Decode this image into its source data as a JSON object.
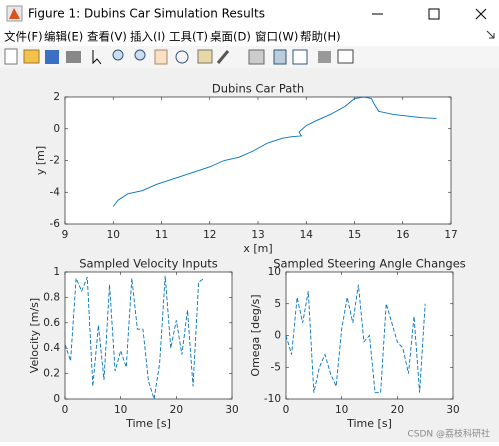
{
  "window": {
    "title": "Figure 1: Dubins Car Simulation Results",
    "menu": [
      "文件(F)",
      "编辑(E)",
      "查看(V)",
      "插入(I)",
      "工具(T)",
      "桌面(D)",
      "窗口(W)",
      "帮助(H)"
    ]
  },
  "watermark": "CSDN @荔枝科研社",
  "chart_data": [
    {
      "type": "line",
      "title": "Dubins Car Path",
      "x_label": "x [m]",
      "y_label": "y [m]",
      "color": "#0072bd",
      "line_style": "solid",
      "x": [
        10.0,
        10.1,
        10.3,
        10.6,
        10.9,
        11.2,
        11.5,
        11.8,
        12.0,
        12.3,
        12.6,
        12.9,
        13.2,
        13.5,
        13.7,
        13.9,
        13.85,
        14.0,
        14.2,
        14.5,
        14.8,
        15.0,
        15.2,
        15.35,
        15.4,
        15.5,
        15.8,
        16.1,
        16.4,
        16.7
      ],
      "values": [
        -4.9,
        -4.5,
        -4.1,
        -3.9,
        -3.5,
        -3.2,
        -2.9,
        -2.6,
        -2.4,
        -2.0,
        -1.8,
        -1.4,
        -0.9,
        -0.6,
        -0.5,
        -0.45,
        -0.2,
        0.2,
        0.5,
        0.9,
        1.4,
        1.9,
        2.0,
        1.9,
        1.6,
        1.1,
        0.9,
        0.8,
        0.7,
        0.65
      ],
      "xlim": [
        9,
        17
      ],
      "xticks": [
        9,
        10,
        11,
        12,
        13,
        14,
        15,
        16,
        17
      ],
      "ylim": [
        -6,
        2
      ],
      "yticks": [
        -6,
        -4,
        -2,
        0,
        2
      ]
    },
    {
      "type": "line",
      "title": "Sampled Velocity Inputs",
      "x_label": "Time [s]",
      "y_label": "Velocity [m/s]",
      "color": "#0072bd",
      "line_style": "dashed",
      "x": [
        0,
        1,
        2,
        3,
        4,
        5,
        6,
        7,
        8,
        9,
        10,
        11,
        12,
        13,
        14,
        15,
        16,
        17,
        18,
        19,
        20,
        21,
        22,
        23,
        24,
        25
      ],
      "values": [
        0.43,
        0.3,
        0.95,
        0.85,
        0.96,
        0.1,
        0.58,
        0.15,
        0.9,
        0.22,
        0.38,
        0.25,
        0.95,
        0.55,
        0.55,
        0.14,
        0.0,
        0.28,
        0.97,
        0.4,
        0.62,
        0.35,
        0.7,
        0.1,
        0.92,
        0.95
      ],
      "xlim": [
        0,
        30
      ],
      "xticks": [
        0,
        10,
        20,
        30
      ],
      "ylim": [
        0,
        1
      ],
      "yticks": [
        0,
        0.2,
        0.4,
        0.6,
        0.8,
        1
      ]
    },
    {
      "type": "line",
      "title": "Sampled Steering Angle Changes",
      "x_label": "Time [s]",
      "y_label": "Omega [deg/s]",
      "color": "#0072bd",
      "line_style": "dashed",
      "x": [
        0,
        1,
        2,
        3,
        4,
        5,
        6,
        7,
        8,
        9,
        10,
        11,
        12,
        13,
        14,
        15,
        16,
        17,
        18,
        19,
        20,
        21,
        22,
        23,
        24,
        25
      ],
      "values": [
        0,
        -3,
        6,
        2,
        7,
        -9,
        -5,
        -3,
        -6,
        -8,
        1,
        6,
        2,
        8,
        -1,
        0,
        -9,
        -9,
        5,
        2,
        -1,
        -2,
        -6,
        3,
        -9,
        5
      ],
      "xlim": [
        0,
        30
      ],
      "xticks": [
        0,
        10,
        20,
        30
      ],
      "ylim": [
        -10,
        10
      ],
      "yticks": [
        -10,
        -5,
        0,
        5,
        10
      ]
    }
  ]
}
